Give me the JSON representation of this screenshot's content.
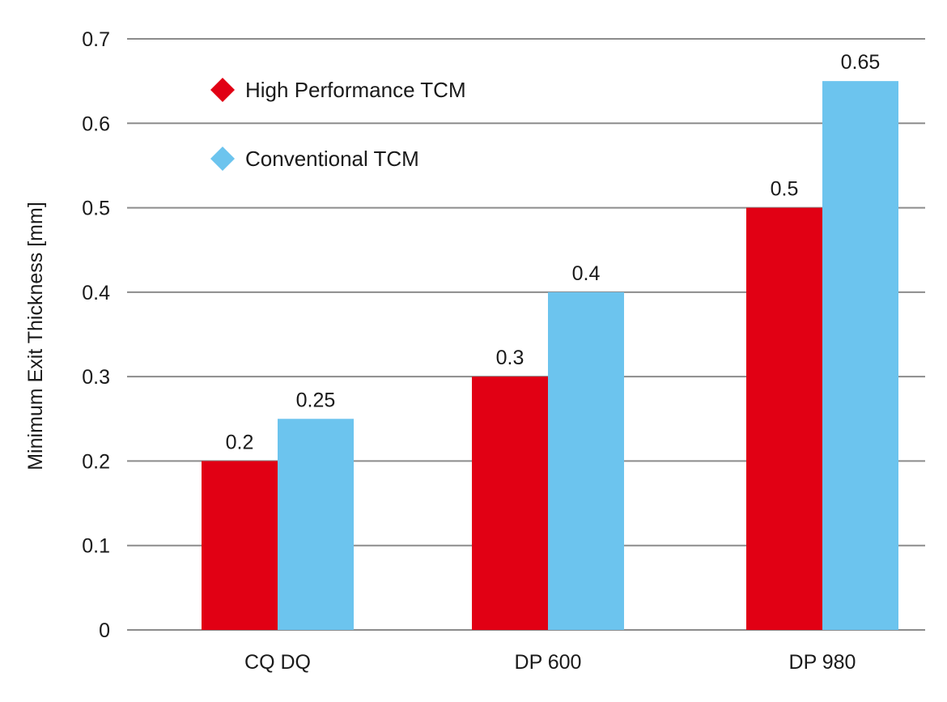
{
  "chart_data": {
    "type": "bar",
    "categories": [
      "CQ DQ",
      "DP 600",
      "DP 980"
    ],
    "series": [
      {
        "name": "High Performance TCM",
        "values": [
          0.2,
          0.3,
          0.5
        ],
        "color": "#e10014"
      },
      {
        "name": "Conventional TCM",
        "values": [
          0.25,
          0.4,
          0.65
        ],
        "color": "#6cc4ee"
      }
    ],
    "data_labels": [
      [
        "0.2",
        "0.3",
        "0.5"
      ],
      [
        "0.25",
        "0.4",
        "0.65"
      ]
    ],
    "yticks": [
      "0",
      "0.1",
      "0.2",
      "0.3",
      "0.4",
      "0.5",
      "0.6",
      "0.7"
    ],
    "ylim": [
      0,
      0.7
    ],
    "ylabel": "Minimum Exit Thickness [mm]",
    "xlabel": "",
    "title": "",
    "grid": true,
    "legend_position": "top-left",
    "legend_marker": "diamond"
  }
}
